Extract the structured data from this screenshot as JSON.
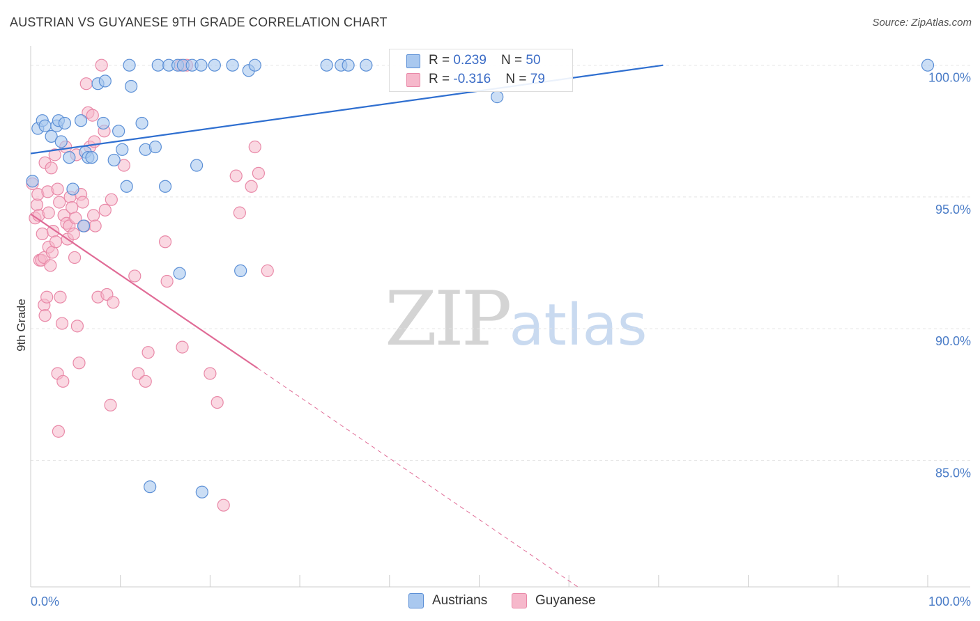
{
  "header": {
    "title": "AUSTRIAN VS GUYANESE 9TH GRADE CORRELATION CHART",
    "source": "Source: ZipAtlas.com"
  },
  "watermark": {
    "zip": "ZIP",
    "atlas": "atlas"
  },
  "legend": {
    "rows": [
      {
        "r_label": "R = ",
        "r_value": "0.239",
        "n_label": "N = ",
        "n_value": "50",
        "color": "#a9c8ef"
      },
      {
        "r_label": "R = ",
        "r_value": "-0.316",
        "n_label": "N = ",
        "n_value": "79",
        "color": "#f6b8cb"
      }
    ]
  },
  "bottom_legend": [
    {
      "label": "Austrians",
      "color": "#a9c8ef"
    },
    {
      "label": "Guyanese",
      "color": "#f6b8cb"
    }
  ],
  "chart_data": {
    "type": "scatter",
    "title": "AUSTRIAN VS GUYANESE 9TH GRADE CORRELATION CHART",
    "xlabel": "",
    "ylabel": "9th Grade",
    "xlim": [
      0,
      100
    ],
    "ylim": [
      80.2,
      100.6
    ],
    "x_tick_labels": [
      {
        "value": 0,
        "label": "0.0%"
      },
      {
        "value": 100,
        "label": "100.0%"
      }
    ],
    "y_ticks": [
      {
        "value": 100,
        "label": "100.0%"
      },
      {
        "value": 95,
        "label": "95.0%"
      },
      {
        "value": 90,
        "label": "90.0%"
      },
      {
        "value": 85,
        "label": "85.0%"
      }
    ],
    "colors": {
      "austrians_fill": "#a9c8ef",
      "austrians_stroke": "#5b8fd6",
      "austrians_line": "#2f6fd0",
      "guyanese_fill": "#f6b8cb",
      "guyanese_stroke": "#e989a8",
      "guyanese_line": "#e06b96",
      "grid": "#e4e4e4",
      "axis": "#cccccc"
    },
    "series": [
      {
        "name": "Austrians",
        "points": [
          [
            0.2,
            95.6
          ],
          [
            0.8,
            97.6
          ],
          [
            1.3,
            97.9
          ],
          [
            1.6,
            97.7
          ],
          [
            2.3,
            97.3
          ],
          [
            2.9,
            97.7
          ],
          [
            3.1,
            97.9
          ],
          [
            3.4,
            97.1
          ],
          [
            3.8,
            97.8
          ],
          [
            4.3,
            96.5
          ],
          [
            4.7,
            95.3
          ],
          [
            5.6,
            97.9
          ],
          [
            5.9,
            93.9
          ],
          [
            6.1,
            96.7
          ],
          [
            6.4,
            96.5
          ],
          [
            6.8,
            96.5
          ],
          [
            7.5,
            99.3
          ],
          [
            8.1,
            97.8
          ],
          [
            8.3,
            99.4
          ],
          [
            9.3,
            96.4
          ],
          [
            9.8,
            97.5
          ],
          [
            10.2,
            96.8
          ],
          [
            10.7,
            95.4
          ],
          [
            11.0,
            100.0
          ],
          [
            11.2,
            99.2
          ],
          [
            12.4,
            97.8
          ],
          [
            12.8,
            96.8
          ],
          [
            13.3,
            84.0
          ],
          [
            13.9,
            96.9
          ],
          [
            14.2,
            100.0
          ],
          [
            15.0,
            95.4
          ],
          [
            15.4,
            100.0
          ],
          [
            16.4,
            100.0
          ],
          [
            16.6,
            92.1
          ],
          [
            17.0,
            100.0
          ],
          [
            18.0,
            100.0
          ],
          [
            18.5,
            96.2
          ],
          [
            19.0,
            100.0
          ],
          [
            19.1,
            83.8
          ],
          [
            20.5,
            100.0
          ],
          [
            22.5,
            100.0
          ],
          [
            23.4,
            92.2
          ],
          [
            24.3,
            99.8
          ],
          [
            25.0,
            100.0
          ],
          [
            33.0,
            100.0
          ],
          [
            34.6,
            100.0
          ],
          [
            35.4,
            100.0
          ],
          [
            37.4,
            100.0
          ],
          [
            52.0,
            98.8
          ],
          [
            100.0,
            100.0
          ]
        ]
      },
      {
        "name": "Guyanese",
        "points": [
          [
            0.2,
            95.5
          ],
          [
            0.5,
            94.2
          ],
          [
            0.7,
            94.7
          ],
          [
            0.8,
            95.1
          ],
          [
            0.9,
            94.3
          ],
          [
            1.0,
            92.6
          ],
          [
            1.2,
            92.6
          ],
          [
            1.3,
            93.6
          ],
          [
            1.5,
            92.7
          ],
          [
            1.5,
            90.9
          ],
          [
            1.6,
            90.5
          ],
          [
            1.6,
            96.3
          ],
          [
            1.8,
            91.2
          ],
          [
            1.9,
            95.2
          ],
          [
            2.0,
            94.4
          ],
          [
            2.0,
            93.1
          ],
          [
            2.2,
            92.4
          ],
          [
            2.3,
            96.1
          ],
          [
            2.4,
            92.9
          ],
          [
            2.5,
            93.7
          ],
          [
            2.7,
            96.6
          ],
          [
            2.8,
            93.3
          ],
          [
            3.0,
            95.3
          ],
          [
            3.0,
            88.3
          ],
          [
            3.1,
            86.1
          ],
          [
            3.2,
            94.8
          ],
          [
            3.3,
            91.2
          ],
          [
            3.5,
            90.2
          ],
          [
            3.6,
            88.0
          ],
          [
            3.7,
            94.3
          ],
          [
            3.9,
            96.9
          ],
          [
            4.0,
            94.0
          ],
          [
            4.1,
            93.4
          ],
          [
            4.3,
            93.9
          ],
          [
            4.4,
            95.0
          ],
          [
            4.6,
            94.6
          ],
          [
            4.8,
            93.6
          ],
          [
            4.9,
            92.7
          ],
          [
            5.0,
            94.2
          ],
          [
            5.1,
            96.6
          ],
          [
            5.2,
            90.1
          ],
          [
            5.4,
            88.7
          ],
          [
            5.6,
            95.1
          ],
          [
            5.8,
            94.8
          ],
          [
            6.0,
            93.9
          ],
          [
            6.2,
            99.3
          ],
          [
            6.4,
            98.2
          ],
          [
            6.6,
            96.9
          ],
          [
            6.9,
            98.1
          ],
          [
            7.0,
            94.3
          ],
          [
            7.1,
            97.1
          ],
          [
            7.2,
            93.9
          ],
          [
            7.5,
            91.2
          ],
          [
            7.9,
            100.0
          ],
          [
            8.2,
            97.5
          ],
          [
            8.3,
            94.5
          ],
          [
            8.5,
            91.3
          ],
          [
            8.9,
            87.1
          ],
          [
            9.0,
            94.9
          ],
          [
            9.2,
            91.0
          ],
          [
            10.4,
            96.2
          ],
          [
            11.6,
            92.0
          ],
          [
            12.0,
            88.3
          ],
          [
            12.8,
            88.0
          ],
          [
            13.1,
            89.1
          ],
          [
            15.0,
            93.3
          ],
          [
            15.2,
            91.8
          ],
          [
            16.7,
            100.0
          ],
          [
            16.9,
            89.3
          ],
          [
            17.4,
            100.0
          ],
          [
            20.0,
            88.3
          ],
          [
            20.8,
            87.2
          ],
          [
            21.5,
            83.3
          ],
          [
            22.9,
            95.8
          ],
          [
            23.3,
            94.4
          ],
          [
            24.6,
            95.4
          ],
          [
            25.0,
            96.9
          ],
          [
            25.4,
            95.9
          ],
          [
            26.4,
            92.2
          ]
        ]
      }
    ],
    "trend_lines": [
      {
        "name": "Austrians",
        "x": [
          0,
          70.5
        ],
        "y": [
          96.65,
          100.0
        ],
        "style": "solid"
      },
      {
        "name": "Guyanese",
        "x": [
          0,
          25.3
        ],
        "y": [
          94.35,
          88.5
        ],
        "style": "solid"
      },
      {
        "name": "Guyanese",
        "x": [
          25.3,
          61.0
        ],
        "y": [
          88.5,
          80.2
        ],
        "style": "dashed"
      }
    ]
  }
}
